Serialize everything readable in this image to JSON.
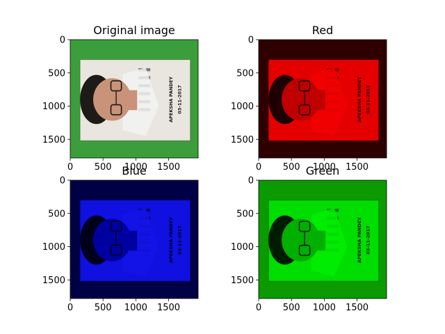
{
  "chart_data": [
    {
      "type": "image",
      "title": "Original image",
      "channel": "rgb",
      "xticks": [
        "0",
        "500",
        "1000",
        "1500"
      ],
      "yticks": [
        "0",
        "500",
        "1000",
        "1500"
      ],
      "xlim": [
        0,
        1950
      ],
      "ylim": [
        1780,
        0
      ],
      "card_text": [
        "APEKSHA PANDEY",
        "03-11-2017"
      ],
      "colors": {
        "background": "#3c9e3a",
        "card": "#e9e6e0",
        "shirt": "#f2f2f2",
        "face": "#c89378",
        "hair": "#1e1a18"
      }
    },
    {
      "type": "image",
      "title": "Red",
      "channel": "red",
      "xticks": [
        "0",
        "500",
        "1000",
        "1500"
      ],
      "yticks": [
        "0",
        "500",
        "1000",
        "1500"
      ],
      "xlim": [
        0,
        1950
      ],
      "ylim": [
        1780,
        0
      ],
      "card_text": [
        "APEKSHA PANDEY",
        "03-11-2017"
      ],
      "colors": {
        "background": "#2e0000",
        "card": "#e50000",
        "shirt": "#f20000",
        "face": "#c00000",
        "hair": "#1e0000"
      }
    },
    {
      "type": "image",
      "title": "Blue",
      "channel": "blue",
      "xticks": [
        "0",
        "500",
        "1000",
        "1500"
      ],
      "yticks": [
        "0",
        "500",
        "1000",
        "1500"
      ],
      "xlim": [
        0,
        1950
      ],
      "ylim": [
        1780,
        0
      ],
      "card_text": [
        "APEKSHA PANDEY",
        "03-11-2017"
      ],
      "colors": {
        "background": "#000045",
        "card": "#1010e0",
        "shirt": "#1414e8",
        "face": "#0000a0",
        "hair": "#00001e"
      }
    },
    {
      "type": "image",
      "title": "Green",
      "channel": "green",
      "xticks": [
        "0",
        "500",
        "1000",
        "1500"
      ],
      "yticks": [
        "0",
        "500",
        "1000",
        "1500"
      ],
      "xlim": [
        0,
        1950
      ],
      "ylim": [
        1780,
        0
      ],
      "card_text": [
        "APEKSHA PANDEY",
        "03-11-2017"
      ],
      "colors": {
        "background": "#0b9a00",
        "card": "#00dd00",
        "shirt": "#00ee00",
        "face": "#00b000",
        "hair": "#001c00"
      }
    }
  ]
}
